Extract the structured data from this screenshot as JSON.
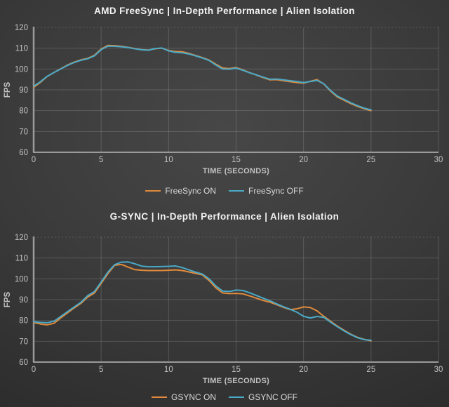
{
  "colors": {
    "background_center": "#474747",
    "background_edge": "#2b2b2b",
    "title_text": "#f2f2f2",
    "axis_text": "#c3c3c3",
    "legend_text": "#d8d8d8",
    "gridline": "rgba(255,255,255,0.16)",
    "axis_line": "#9a9a9a",
    "accent_orange": "#E08A3C",
    "accent_blue": "#4AA9C7"
  },
  "chart_data": [
    {
      "type": "line",
      "title": "AMD FreeSync | In-Depth Performance | Alien Isolation",
      "xlabel": "TIME (SECONDS)",
      "ylabel": "FPS",
      "xlim": [
        0,
        30
      ],
      "ylim": [
        60,
        120
      ],
      "x_ticks": [
        0,
        5,
        10,
        15,
        20,
        25,
        30
      ],
      "y_ticks": [
        60,
        70,
        80,
        90,
        100,
        110,
        120
      ],
      "grid": true,
      "legend_position": "bottom",
      "x_start": 0,
      "x_step": 0.5,
      "series": [
        {
          "name": "FreeSync ON",
          "color": "#E08A3C",
          "values": [
            91.2,
            93.6,
            96.4,
            98.3,
            100.1,
            101.9,
            103.3,
            104.4,
            105.1,
            106.6,
            109.6,
            111.3,
            111.2,
            110.9,
            110.4,
            109.8,
            109.3,
            109.1,
            109.7,
            110.0,
            108.9,
            108.4,
            108.3,
            107.5,
            106.5,
            105.5,
            104.3,
            102.3,
            100.5,
            100.2,
            100.7,
            99.6,
            98.3,
            97.1,
            95.9,
            94.8,
            94.9,
            94.4,
            93.9,
            93.5,
            93.2,
            94.1,
            94.9,
            92.8,
            89.4,
            86.6,
            85.0,
            83.4,
            82.0,
            80.9,
            80.0
          ]
        },
        {
          "name": "FreeSync OFF",
          "color": "#4AA9C7",
          "values": [
            91.7,
            93.9,
            96.5,
            98.3,
            100.0,
            101.7,
            103.1,
            104.2,
            104.9,
            106.3,
            109.3,
            111.0,
            110.9,
            110.7,
            110.3,
            109.7,
            109.2,
            109.0,
            109.8,
            110.1,
            108.7,
            108.0,
            107.8,
            107.2,
            106.3,
            105.3,
            104.1,
            101.9,
            100.0,
            99.9,
            100.4,
            99.4,
            98.2,
            97.2,
            96.1,
            95.1,
            95.2,
            94.8,
            94.4,
            94.0,
            93.5,
            94.0,
            94.5,
            92.9,
            89.7,
            87.0,
            85.4,
            83.8,
            82.4,
            81.2,
            80.4
          ]
        }
      ]
    },
    {
      "type": "line",
      "title": "G-SYNC | In-Depth Performance | Alien Isolation",
      "xlabel": "TIME (SECONDS)",
      "ylabel": "FPS",
      "xlim": [
        0,
        30
      ],
      "ylim": [
        60,
        120
      ],
      "x_ticks": [
        0,
        5,
        10,
        15,
        20,
        25,
        30
      ],
      "y_ticks": [
        60,
        70,
        80,
        90,
        100,
        110,
        120
      ],
      "grid": true,
      "legend_position": "bottom",
      "x_start": 0,
      "x_step": 0.5,
      "series": [
        {
          "name": "GSYNC ON",
          "color": "#E08A3C",
          "values": [
            79.0,
            78.3,
            77.9,
            78.6,
            81.2,
            83.6,
            86.0,
            88.2,
            91.2,
            93.2,
            97.8,
            102.5,
            106.5,
            106.9,
            105.6,
            104.4,
            104.1,
            104.0,
            104.0,
            104.0,
            104.1,
            104.3,
            104.0,
            103.3,
            102.6,
            101.9,
            99.2,
            95.7,
            93.2,
            92.9,
            93.0,
            92.8,
            91.8,
            90.7,
            89.6,
            88.8,
            87.6,
            86.3,
            85.2,
            85.6,
            86.5,
            86.2,
            84.6,
            82.0,
            79.6,
            77.3,
            75.3,
            73.4,
            71.9,
            70.9,
            70.2
          ]
        },
        {
          "name": "GSYNC OFF",
          "color": "#4AA9C7",
          "values": [
            79.4,
            79.1,
            78.9,
            79.6,
            81.9,
            84.2,
            86.5,
            88.7,
            91.9,
            93.9,
            98.5,
            103.2,
            106.8,
            108.0,
            108.1,
            107.2,
            106.1,
            105.8,
            105.8,
            105.9,
            106.0,
            106.2,
            105.4,
            104.3,
            103.2,
            102.3,
            100.0,
            96.6,
            94.1,
            93.9,
            94.6,
            94.4,
            93.3,
            92.0,
            90.7,
            89.5,
            88.0,
            86.6,
            85.4,
            84.0,
            82.0,
            81.2,
            81.9,
            81.5,
            79.2,
            77.0,
            75.0,
            73.2,
            71.7,
            70.8,
            70.5
          ]
        }
      ]
    }
  ]
}
